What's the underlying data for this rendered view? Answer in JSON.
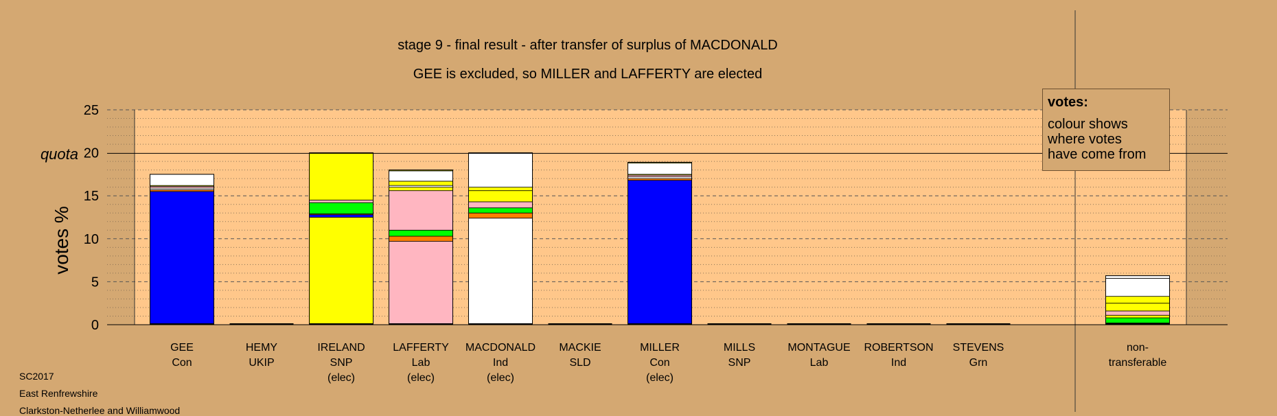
{
  "chart_data": {
    "type": "bar",
    "stacked": true,
    "title": "stage 9 - final result - after transfer of surplus of MACDONALD",
    "subtitle": "GEE is excluded, so MILLER and LAFFERTY are elected",
    "ylabel": "votes %",
    "ylim": [
      0,
      25
    ],
    "yticks": [
      0,
      5,
      10,
      15,
      20,
      25
    ],
    "quota": 20,
    "quota_label": "quota",
    "grid": true,
    "candidates": [
      {
        "name": "GEE",
        "party": "Con",
        "status": "",
        "segments": [
          {
            "color": "#0000ff",
            "value": 15.5
          },
          {
            "color": "#ff8000",
            "value": 0.2
          },
          {
            "color": "#ffffff",
            "value": 0.2
          },
          {
            "color": "#ffb6c1",
            "value": 0.2
          },
          {
            "color": "#ffff00",
            "value": 0.1
          },
          {
            "color": "#ffffff",
            "value": 1.3
          }
        ]
      },
      {
        "name": "HEMY",
        "party": "UKIP",
        "status": "",
        "segments": []
      },
      {
        "name": "IRELAND",
        "party": "SNP",
        "status": "(elec)",
        "segments": [
          {
            "color": "#ffff00",
            "value": 12.5
          },
          {
            "color": "#0000ff",
            "value": 0.3
          },
          {
            "color": "#ff8000",
            "value": 0.1
          },
          {
            "color": "#00ff00",
            "value": 1.3
          },
          {
            "color": "#ffb6c1",
            "value": 0.3
          },
          {
            "color": "#ffff00",
            "value": 5.5
          }
        ]
      },
      {
        "name": "LAFFERTY",
        "party": "Lab",
        "status": "(elec)",
        "segments": [
          {
            "color": "#ffb6c1",
            "value": 9.7
          },
          {
            "color": "#ff8000",
            "value": 0.6
          },
          {
            "color": "#00ff00",
            "value": 0.7
          },
          {
            "color": "#ffb6c1",
            "value": 4.6
          },
          {
            "color": "#ffff00",
            "value": 0.4
          },
          {
            "color": "#ffffff",
            "value": 0.2
          },
          {
            "color": "#ffff00",
            "value": 0.5
          },
          {
            "color": "#ffffff",
            "value": 1.2
          },
          {
            "color": "#ffff00",
            "value": 0.1
          }
        ]
      },
      {
        "name": "MACDONALD",
        "party": "Ind",
        "status": "(elec)",
        "segments": [
          {
            "color": "#ffffff",
            "value": 12.4
          },
          {
            "color": "#ff8000",
            "value": 0.6
          },
          {
            "color": "#00ff00",
            "value": 0.6
          },
          {
            "color": "#ffb6c1",
            "value": 0.7
          },
          {
            "color": "#ffff00",
            "value": 1.3
          },
          {
            "color": "#ffff00",
            "value": 0.4
          },
          {
            "color": "#ffffff",
            "value": 4.0
          }
        ]
      },
      {
        "name": "MACKIE",
        "party": "SLD",
        "status": "",
        "segments": []
      },
      {
        "name": "MILLER",
        "party": "Con",
        "status": "(elec)",
        "segments": [
          {
            "color": "#0000ff",
            "value": 16.8
          },
          {
            "color": "#ff8000",
            "value": 0.2
          },
          {
            "color": "#ffffff",
            "value": 0.2
          },
          {
            "color": "#ffb6c1",
            "value": 0.2
          },
          {
            "color": "#ffff00",
            "value": 0.1
          },
          {
            "color": "#ffffff",
            "value": 1.3
          },
          {
            "color": "#ffff00",
            "value": 0.1
          }
        ]
      },
      {
        "name": "MILLS",
        "party": "SNP",
        "status": "",
        "segments": []
      },
      {
        "name": "MONTAGUE",
        "party": "Lab",
        "status": "",
        "segments": []
      },
      {
        "name": "ROBERTSON",
        "party": "Ind",
        "status": "",
        "segments": []
      },
      {
        "name": "STEVENS",
        "party": "Grn",
        "status": "",
        "segments": []
      }
    ],
    "nontransferable": {
      "name": "non-",
      "party": "transferable",
      "status": "",
      "segments": [
        {
          "color": "#0000ff",
          "value": 0.2
        },
        {
          "color": "#00ff00",
          "value": 0.6
        },
        {
          "color": "#ffff00",
          "value": 0.3
        },
        {
          "color": "#ffb6c1",
          "value": 0.5
        },
        {
          "color": "#ffff00",
          "value": 0.9
        },
        {
          "color": "#ffff00",
          "value": 0.8
        },
        {
          "color": "#ffffff",
          "value": 2.1
        },
        {
          "color": "#ffffff",
          "value": 0.3
        }
      ]
    }
  },
  "legend": {
    "title": "votes:",
    "line1": "colour shows",
    "line2": "where votes",
    "line3": "have come from"
  },
  "footer": {
    "election": "SC2017",
    "council": "East Renfrewshire",
    "ward": "Clarkston-Netherlee and Williamwood"
  },
  "colors": {
    "background": "#d4a872",
    "plot_area": "#ffc78a",
    "con": "#0000ff",
    "snp": "#ffff00",
    "lab": "#ffb6c1",
    "ind": "#ffffff",
    "grn": "#00ff00",
    "sld": "#ff8000"
  }
}
